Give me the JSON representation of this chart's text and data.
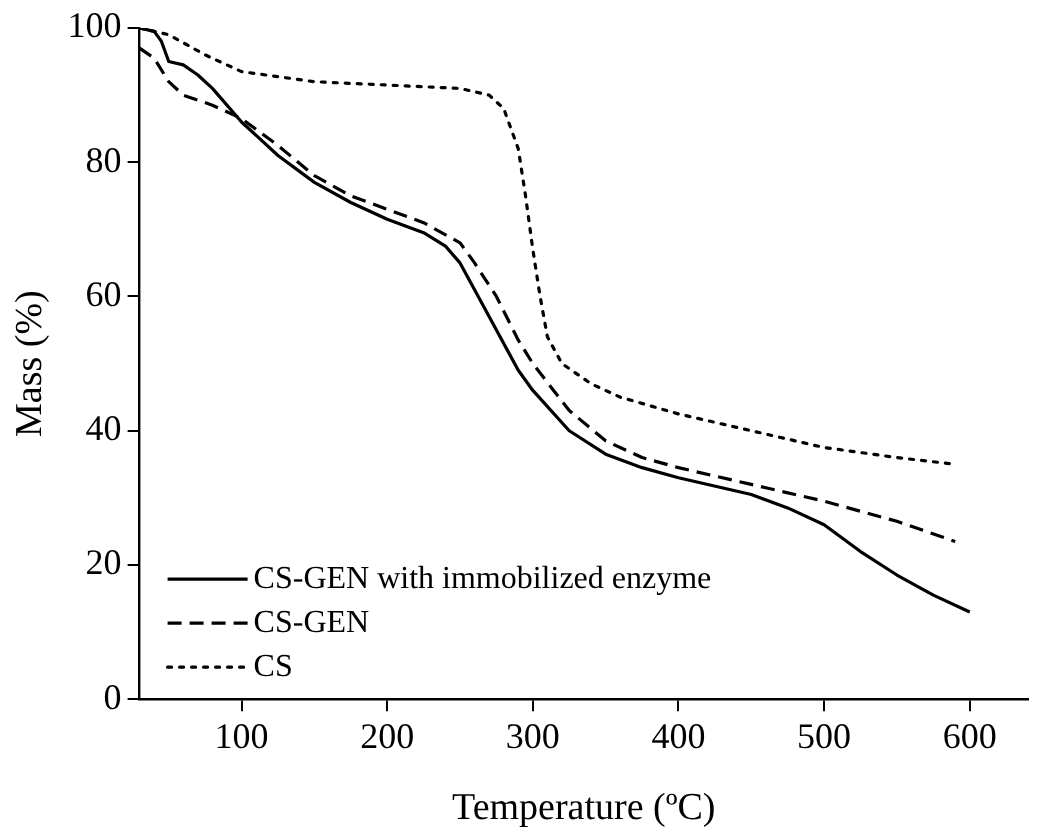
{
  "chart_data": {
    "type": "line",
    "xlabel": "Temperature (ºC)",
    "ylabel": "Mass (%)",
    "xlim": [
      30,
      640
    ],
    "ylim": [
      0,
      100
    ],
    "xticks": [
      100,
      200,
      300,
      400,
      500,
      600
    ],
    "yticks": [
      0,
      20,
      40,
      60,
      80,
      100
    ],
    "grid": false,
    "legend": "bottom left",
    "marker": "none",
    "series": [
      {
        "name": "CS-GEN with immobilized enzyme",
        "color": "#000000",
        "line_style": "solid",
        "x": [
          30,
          40,
          45,
          50,
          60,
          70,
          80,
          100,
          125,
          150,
          175,
          200,
          225,
          240,
          250,
          260,
          275,
          290,
          300,
          325,
          350,
          375,
          400,
          450,
          475,
          500,
          525,
          550,
          575,
          600
        ],
        "values": [
          100,
          99.5,
          98,
          95,
          94.5,
          93,
          91,
          86,
          81,
          77,
          74,
          71.5,
          69.5,
          67.5,
          65,
          61,
          55,
          49,
          46,
          40,
          36.5,
          34.5,
          33,
          30.5,
          28.5,
          26,
          22,
          18.5,
          15.5,
          13
        ]
      },
      {
        "name": "CS-GEN",
        "color": "#000000",
        "line_style": "dashed",
        "x": [
          30,
          40,
          50,
          60,
          80,
          100,
          125,
          150,
          175,
          200,
          225,
          250,
          260,
          275,
          290,
          300,
          325,
          350,
          375,
          400,
          450,
          500,
          550,
          590
        ],
        "values": [
          97,
          95.5,
          92,
          90,
          88.5,
          86.5,
          82.5,
          78,
          75,
          73,
          71,
          68,
          65,
          60,
          53.5,
          50,
          43,
          38.5,
          36,
          34.5,
          32,
          29.5,
          26.5,
          23.5
        ]
      },
      {
        "name": "CS",
        "color": "#000000",
        "line_style": "dotted",
        "x": [
          30,
          50,
          75,
          100,
          150,
          200,
          250,
          270,
          280,
          290,
          295,
          300,
          305,
          310,
          320,
          340,
          360,
          400,
          450,
          500,
          550,
          590
        ],
        "values": [
          100,
          99,
          96,
          93.5,
          92,
          91.5,
          91,
          90,
          88,
          82,
          75,
          67,
          60,
          54,
          50,
          47,
          45,
          42.5,
          40,
          37.5,
          36,
          35
        ]
      }
    ]
  }
}
